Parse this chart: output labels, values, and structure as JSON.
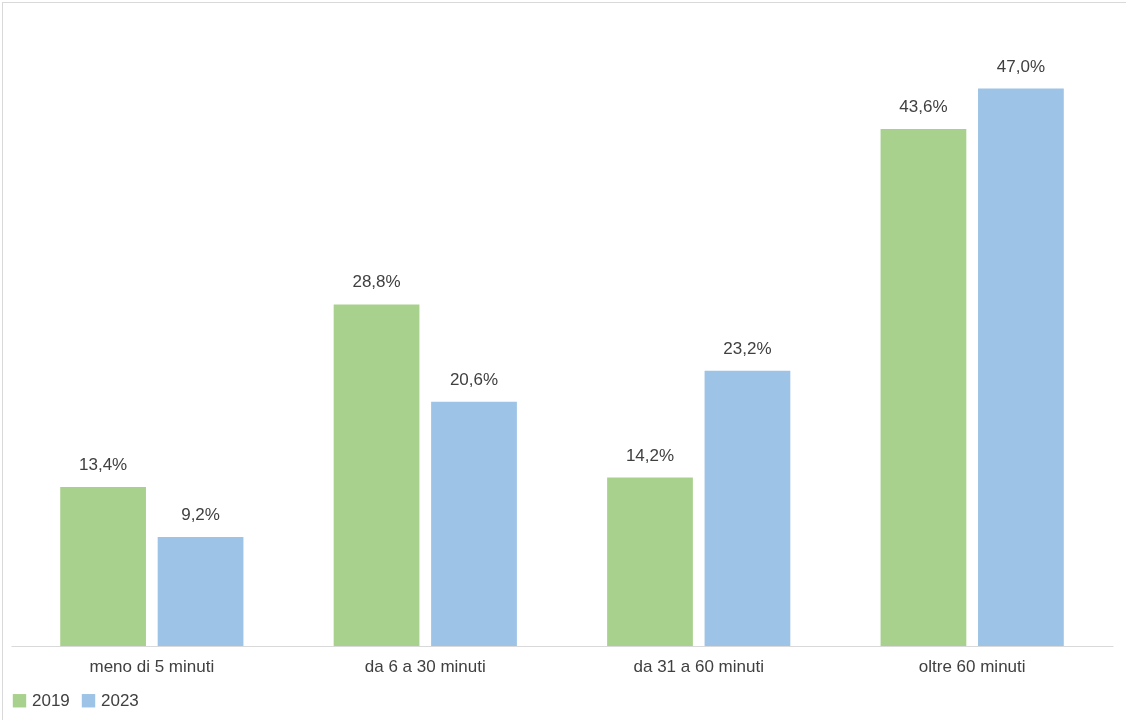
{
  "chart_data": {
    "type": "bar",
    "categories": [
      "meno di 5 minuti",
      "da 6 a 30 minuti",
      "da 31 a 60 minuti",
      "oltre 60 minuti"
    ],
    "series": [
      {
        "name": "2019",
        "color": "#a9d18e",
        "values": [
          13.4,
          28.8,
          14.2,
          43.6
        ],
        "value_labels": [
          "13,4%",
          "28,8%",
          "14,2%",
          "43,6%"
        ]
      },
      {
        "name": "2023",
        "color": "#9dc3e6",
        "values": [
          9.2,
          20.6,
          23.2,
          47.0
        ],
        "value_labels": [
          "9,2%",
          "20,6%",
          "23,2%",
          "47,0%"
        ]
      }
    ],
    "legend": "bottom",
    "grid": false
  }
}
